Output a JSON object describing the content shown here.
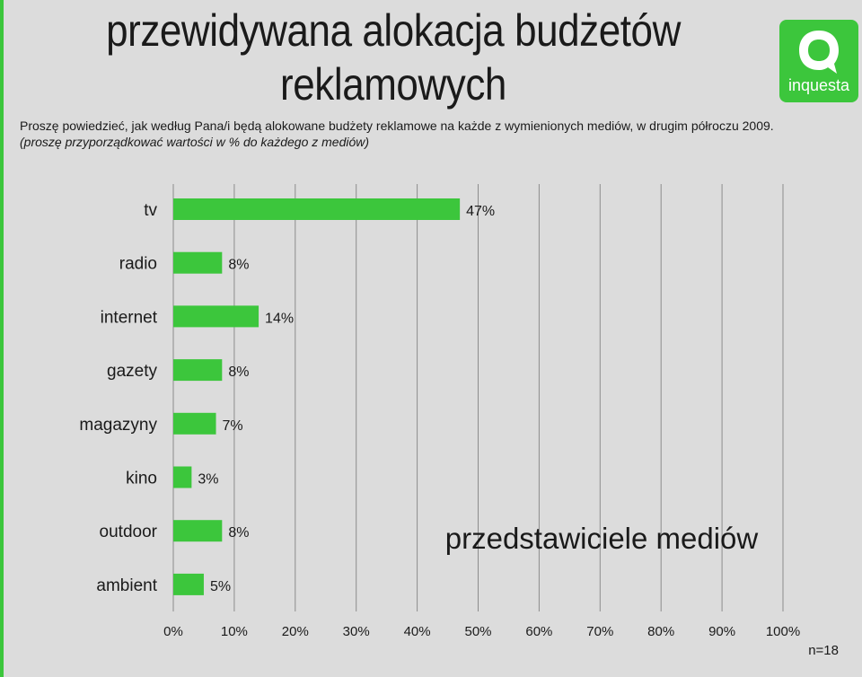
{
  "header": {
    "title_line1": "przewidywana alokacja budżetów",
    "title_line2": "reklamowych",
    "question": "Proszę powiedzieć, jak według Pana/i będą alokowane budżety reklamowe na każde z wymienionych mediów, w drugim półroczu 2009.",
    "instruction": "(proszę przyporządkować wartości w % do każdego z mediów)"
  },
  "logo": {
    "text": "inquesta",
    "color": "#3cc63c"
  },
  "footer": {
    "sample_size": "n=18"
  },
  "chart_data": {
    "type": "bar",
    "orientation": "horizontal",
    "categories": [
      "tv",
      "radio",
      "internet",
      "gazety",
      "magazyny",
      "kino",
      "outdoor",
      "ambient"
    ],
    "values": [
      47,
      8,
      14,
      8,
      7,
      3,
      8,
      5
    ],
    "value_labels": [
      "47%",
      "8%",
      "14%",
      "8%",
      "7%",
      "3%",
      "8%",
      "5%"
    ],
    "xlim": [
      0,
      100
    ],
    "xticks": [
      0,
      10,
      20,
      30,
      40,
      50,
      60,
      70,
      80,
      90,
      100
    ],
    "xtick_labels": [
      "0%",
      "10%",
      "20%",
      "30%",
      "40%",
      "50%",
      "60%",
      "70%",
      "80%",
      "90%",
      "100%"
    ],
    "grid": "vertical",
    "bar_color": "#3cc63c",
    "annotation": "przedstawiciele mediów"
  }
}
